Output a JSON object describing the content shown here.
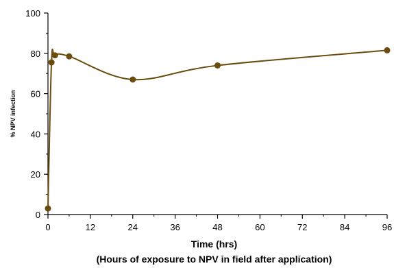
{
  "chart_data": {
    "type": "line",
    "xlabel": "Time (hrs)",
    "xlabel_sub": "(Hours of exposure to NPV in field after application)",
    "ylabel": "% NPV infection",
    "xlim": [
      0,
      96
    ],
    "ylim": [
      0,
      100
    ],
    "xticks": [
      "0",
      "12",
      "24",
      "36",
      "48",
      "60",
      "72",
      "84",
      "96"
    ],
    "yticks": [
      "0",
      "20",
      "40",
      "60",
      "80",
      "100"
    ],
    "series": [
      {
        "x": [
          0,
          1,
          2,
          6,
          24,
          48,
          96
        ],
        "y": [
          3,
          75.5,
          79,
          78.5,
          67,
          74,
          81.5
        ]
      }
    ],
    "grid": false,
    "line_color": "#6b4c0e",
    "marker_color": "#6b4c0e"
  }
}
